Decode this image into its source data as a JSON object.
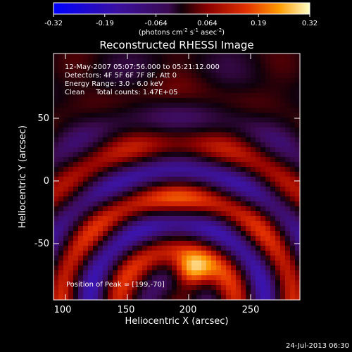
{
  "chart_data": {
    "type": "heatmap",
    "title": "Reconstructed RHESSI Image",
    "xlabel": "Heliocentric X (arcsec)",
    "ylabel": "Heliocentric Y (arcsec)",
    "xlim": [
      90,
      285
    ],
    "ylim": [
      -92,
      104
    ],
    "x_ticks": [
      100,
      150,
      200,
      250
    ],
    "y_ticks": [
      50,
      0,
      -50
    ],
    "colorbar": {
      "ticks": [
        "-0.32",
        "-0.19",
        "-0.064",
        "0.064",
        "0.19",
        "0.32"
      ],
      "range": [
        -0.32,
        0.32
      ],
      "unit_label": "(photons cm",
      "unit_sup1": "-2",
      "unit_mid": " s",
      "unit_sup2": "-1",
      "unit_mid2": " asec",
      "unit_sup3": "-2",
      "unit_end": ")"
    },
    "info_lines": [
      "12-May-2007 05:07:56.000 to 05:21:12.000",
      "Detectors: 4F 5F 6F 7F 8F, Att 0",
      "Energy Range: 3.0 - 6.0 keV",
      "Clean     Total counts: 1.47E+05"
    ],
    "peak_label": "Position of Peak = [199,-70]",
    "peak": [
      199,
      -70
    ]
  },
  "timestamp": "24-Jul-2013 06:30"
}
